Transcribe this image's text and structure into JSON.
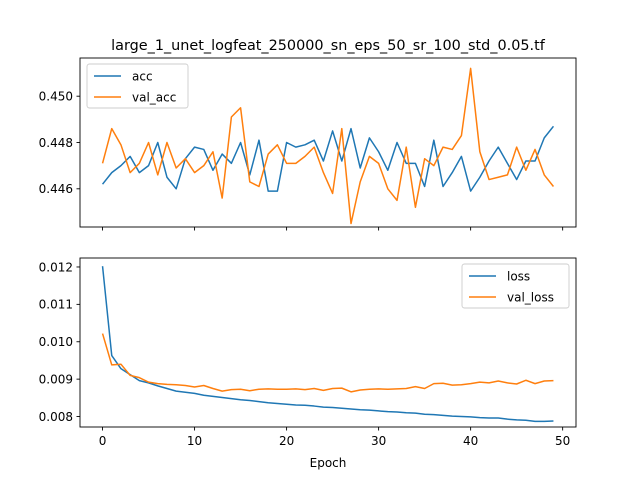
{
  "chart_data": {
    "type": "line",
    "title": "large_1_unet_logfeat_250000_sn_eps_50_sr_100_std_0.05.tf",
    "xlabel": "Epoch",
    "x": [
      0,
      1,
      2,
      3,
      4,
      5,
      6,
      7,
      8,
      9,
      10,
      11,
      12,
      13,
      14,
      15,
      16,
      17,
      18,
      19,
      20,
      21,
      22,
      23,
      24,
      25,
      26,
      27,
      28,
      29,
      30,
      31,
      32,
      33,
      34,
      35,
      36,
      37,
      38,
      39,
      40,
      41,
      42,
      43,
      44,
      45,
      46,
      47,
      48,
      49
    ],
    "xlim": [
      -2.45,
      51.45
    ],
    "xticks": [
      0,
      10,
      20,
      30,
      40,
      50
    ],
    "xtick_labels": [
      "0",
      "10",
      "20",
      "30",
      "40",
      "50"
    ],
    "colors": {
      "series1": "#1f77b4",
      "series2": "#ff7f0e"
    },
    "panels": [
      {
        "id": "accuracy",
        "ylim": [
          0.44435,
          0.45165
        ],
        "yticks": [
          0.446,
          0.448,
          0.45
        ],
        "ytick_labels": [
          "0.446",
          "0.448",
          "0.450"
        ],
        "show_xtick_labels": false,
        "legend_loc": "upper-left",
        "series": [
          {
            "name": "acc",
            "values": [
              0.4462,
              0.4467,
              0.447,
              0.4474,
              0.4467,
              0.447,
              0.448,
              0.4465,
              0.446,
              0.4473,
              0.4478,
              0.4477,
              0.4468,
              0.4475,
              0.4471,
              0.448,
              0.4466,
              0.4481,
              0.4459,
              0.4459,
              0.448,
              0.4478,
              0.4479,
              0.4481,
              0.4472,
              0.4485,
              0.4472,
              0.4486,
              0.4469,
              0.4482,
              0.4476,
              0.4468,
              0.448,
              0.4471,
              0.4471,
              0.4461,
              0.4481,
              0.4461,
              0.4467,
              0.4474,
              0.4459,
              0.4465,
              0.4472,
              0.4478,
              0.4471,
              0.4464,
              0.4472,
              0.4472,
              0.4482,
              0.4487
            ]
          },
          {
            "name": "val_acc",
            "values": [
              0.4471,
              0.4486,
              0.4479,
              0.4467,
              0.4471,
              0.448,
              0.4466,
              0.448,
              0.4469,
              0.4473,
              0.4467,
              0.447,
              0.4476,
              0.4456,
              0.4491,
              0.4495,
              0.4463,
              0.4461,
              0.4475,
              0.4479,
              0.4471,
              0.4471,
              0.4474,
              0.4478,
              0.4467,
              0.4458,
              0.4486,
              0.4445,
              0.4463,
              0.4474,
              0.4471,
              0.446,
              0.4455,
              0.4478,
              0.4452,
              0.4473,
              0.447,
              0.4478,
              0.4477,
              0.4483,
              0.4512,
              0.4476,
              0.4464,
              0.4465,
              0.4466,
              0.4478,
              0.4468,
              0.4477,
              0.4466,
              0.4461
            ]
          }
        ]
      },
      {
        "id": "loss",
        "ylim": [
          0.00772,
          0.01224
        ],
        "yticks": [
          0.008,
          0.009,
          0.01,
          0.011,
          0.012
        ],
        "ytick_labels": [
          "0.008",
          "0.009",
          "0.010",
          "0.011",
          "0.012"
        ],
        "show_xtick_labels": true,
        "legend_loc": "upper-right",
        "series": [
          {
            "name": "loss",
            "values": [
              0.01202,
              0.00963,
              0.00928,
              0.00912,
              0.00896,
              0.0089,
              0.00882,
              0.00875,
              0.00868,
              0.00865,
              0.00862,
              0.00857,
              0.00854,
              0.00851,
              0.00848,
              0.00845,
              0.00843,
              0.0084,
              0.00837,
              0.00835,
              0.00833,
              0.00831,
              0.0083,
              0.00828,
              0.00825,
              0.00824,
              0.00822,
              0.0082,
              0.00818,
              0.00817,
              0.00815,
              0.00813,
              0.00812,
              0.0081,
              0.00809,
              0.00806,
              0.00805,
              0.00803,
              0.00801,
              0.008,
              0.00799,
              0.00797,
              0.00796,
              0.00796,
              0.00793,
              0.00791,
              0.0079,
              0.00787,
              0.00787,
              0.00788
            ]
          },
          {
            "name": "val_loss",
            "values": [
              0.01022,
              0.00938,
              0.0094,
              0.0091,
              0.00904,
              0.00892,
              0.00888,
              0.00886,
              0.00885,
              0.00883,
              0.00879,
              0.00883,
              0.00875,
              0.00868,
              0.00872,
              0.00873,
              0.00869,
              0.00873,
              0.00874,
              0.00873,
              0.00873,
              0.00874,
              0.00872,
              0.00875,
              0.0087,
              0.00875,
              0.00876,
              0.00866,
              0.00871,
              0.00873,
              0.00874,
              0.00873,
              0.00874,
              0.00875,
              0.0088,
              0.00875,
              0.00888,
              0.00889,
              0.00884,
              0.00885,
              0.00888,
              0.00892,
              0.0089,
              0.00895,
              0.0089,
              0.00887,
              0.00897,
              0.00888,
              0.00895,
              0.00896
            ]
          }
        ]
      }
    ]
  }
}
